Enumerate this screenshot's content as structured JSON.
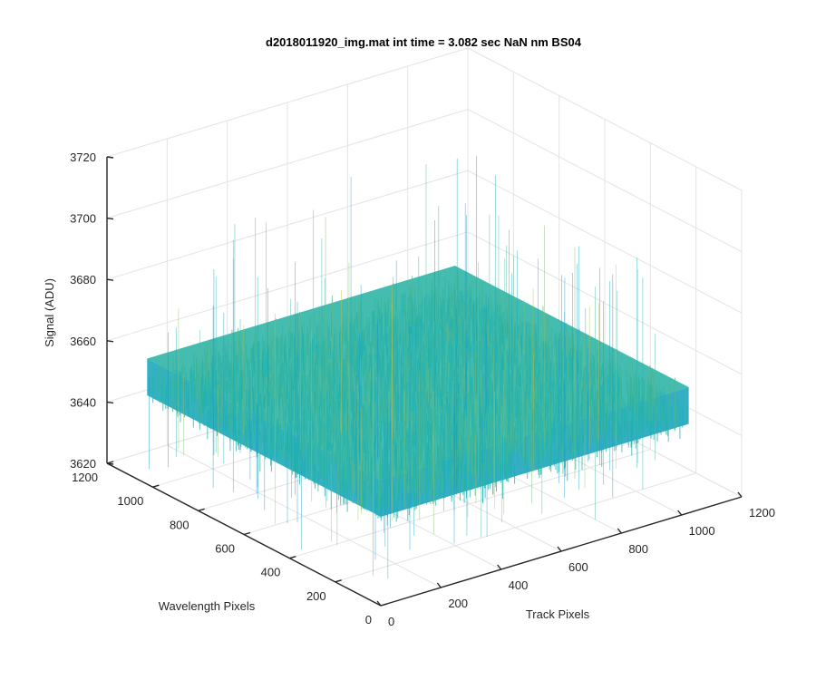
{
  "chart_data": {
    "type": "surface",
    "title": "d2018011920_img.mat int time = 3.082 sec  NaN nm BS04",
    "xlabel": "Track Pixels",
    "ylabel": "Wavelength Pixels",
    "zlabel": "Signal (ADU)",
    "xlim": [
      0,
      1200
    ],
    "ylim": [
      0,
      1200
    ],
    "zlim": [
      3620,
      3720
    ],
    "x_ticks": [
      "0",
      "200",
      "400",
      "600",
      "800",
      "1000",
      "1200"
    ],
    "y_ticks": [
      "0",
      "200",
      "400",
      "600",
      "800",
      "1000",
      "1200"
    ],
    "z_ticks": [
      "3620",
      "3640",
      "3660",
      "3680",
      "3700",
      "3720"
    ],
    "grid": true,
    "colormap": "parula",
    "surface": {
      "x_range": [
        0,
        1024
      ],
      "y_range": [
        0,
        1024
      ],
      "mean": 3655,
      "noise_amplitude": 12,
      "spike_max": 3705
    },
    "colors": {
      "axis": "#262626",
      "grid": "#e3e3e3",
      "low": "#1a8fd6",
      "mid": "#1fb3b0",
      "high": "#c7c24a"
    }
  }
}
